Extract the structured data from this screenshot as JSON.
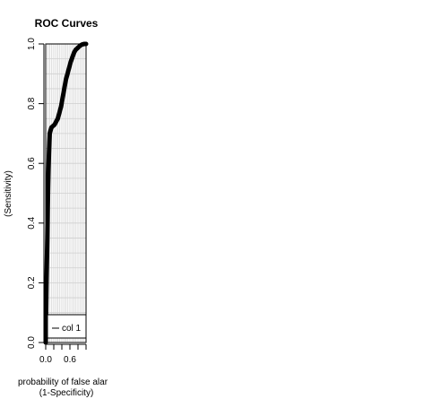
{
  "chart_data": {
    "type": "line",
    "title": "ROC Curves",
    "xlabel_line1": "probability of false alar",
    "xlabel_line2": "(1-Specificity)",
    "ylabel": "(Sensitivity)",
    "xlim": [
      0,
      1
    ],
    "ylim": [
      0,
      1
    ],
    "x_ticks": [
      0.0,
      0.2,
      0.4,
      0.6,
      0.8,
      1.0
    ],
    "x_tick_labels": [
      "0.0",
      "",
      "",
      "0.6",
      "",
      ""
    ],
    "y_ticks": [
      0.0,
      0.2,
      0.4,
      0.6,
      0.8,
      1.0
    ],
    "y_tick_labels": [
      "0.0",
      "0.2",
      "0.4",
      "0.6",
      "0.8",
      "1.0"
    ],
    "grid": true,
    "legend_position": "bottom",
    "series": [
      {
        "name": "col 1",
        "color": "#000000",
        "x": [
          0.0,
          0.02,
          0.04,
          0.05,
          0.06,
          0.07,
          0.08,
          0.09,
          0.1,
          0.12,
          0.14,
          0.18,
          0.22,
          0.26,
          0.3,
          0.34,
          0.38,
          0.42,
          0.46,
          0.5,
          0.54,
          0.58,
          0.62,
          0.66,
          0.7,
          0.74,
          0.78,
          0.82,
          0.86,
          0.9,
          0.95,
          1.0
        ],
        "y": [
          0.0,
          0.2,
          0.35,
          0.45,
          0.52,
          0.58,
          0.63,
          0.67,
          0.7,
          0.71,
          0.72,
          0.725,
          0.73,
          0.74,
          0.75,
          0.77,
          0.79,
          0.82,
          0.85,
          0.88,
          0.9,
          0.92,
          0.94,
          0.955,
          0.97,
          0.98,
          0.985,
          0.99,
          0.995,
          0.998,
          1.0,
          1.0
        ]
      }
    ]
  }
}
